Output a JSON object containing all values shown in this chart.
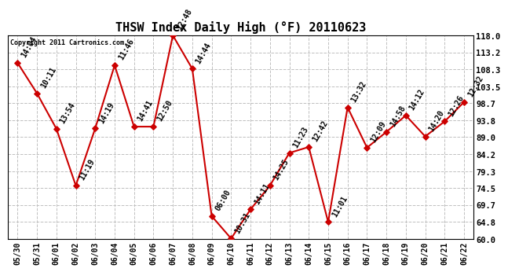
{
  "title": "THSW Index Daily High (°F) 20110623",
  "copyright": "Copyright 2011 Cartronics.com",
  "background_color": "#ffffff",
  "plot_bg_color": "#ffffff",
  "grid_color": "#c0c0c0",
  "line_color": "#cc0000",
  "marker_color": "#cc0000",
  "dates": [
    "05/30",
    "05/31",
    "06/01",
    "06/02",
    "06/03",
    "06/04",
    "06/05",
    "06/06",
    "06/07",
    "06/08",
    "06/09",
    "06/10",
    "06/11",
    "06/12",
    "06/13",
    "06/14",
    "06/15",
    "06/16",
    "06/17",
    "06/18",
    "06/19",
    "06/20",
    "06/21",
    "06/22"
  ],
  "values": [
    110.2,
    101.5,
    91.4,
    75.2,
    91.5,
    109.5,
    92.0,
    92.0,
    118.0,
    108.5,
    66.5,
    60.1,
    68.4,
    75.2,
    84.5,
    86.2,
    64.8,
    97.5,
    86.0,
    90.5,
    95.2,
    89.2,
    93.5,
    99.0
  ],
  "annotations": [
    "14:04",
    "10:11",
    "13:54",
    "11:19",
    "14:19",
    "11:46",
    "14:41",
    "12:50",
    "12:48",
    "14:44",
    "06:00",
    "10:31",
    "14:11",
    "14:25",
    "11:23",
    "12:42",
    "11:01",
    "13:32",
    "12:09",
    "14:58",
    "14:12",
    "14:20",
    "12:26",
    "12:32"
  ],
  "ylim": [
    60.0,
    118.0
  ],
  "yticks": [
    60.0,
    64.8,
    69.7,
    74.5,
    79.3,
    84.2,
    89.0,
    93.8,
    98.7,
    103.5,
    108.3,
    113.2,
    118.0
  ],
  "ytick_labels": [
    "60.0",
    "64.8",
    "69.7",
    "74.5",
    "79.3",
    "84.2",
    "89.0",
    "93.8",
    "98.7",
    "103.5",
    "108.3",
    "113.2",
    "118.0"
  ],
  "ylabel_fontsize": 7.5,
  "xlabel_fontsize": 7,
  "title_fontsize": 11,
  "annotation_fontsize": 7,
  "annotation_rotation": 60
}
